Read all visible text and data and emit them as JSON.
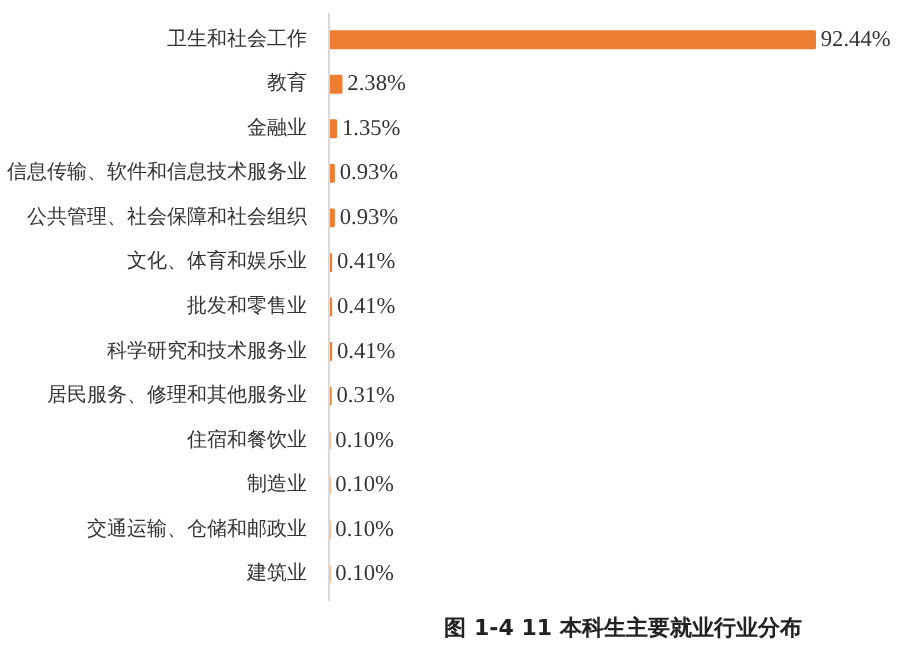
{
  "chart_data": {
    "type": "bar",
    "orientation": "horizontal",
    "title": "图 1-4 11 本科生主要就业行业分布",
    "categories": [
      "卫生和社会工作",
      "教育",
      "金融业",
      "信息传输、软件和信息技术服务业",
      "公共管理、社会保障和社会组织",
      "文化、体育和娱乐业",
      "批发和零售业",
      "科学研究和技术服务业",
      "居民服务、修理和其他服务业",
      "住宿和餐饮业",
      "制造业",
      "交通运输、仓储和邮政业",
      "建筑业"
    ],
    "values": [
      92.44,
      2.38,
      1.35,
      0.93,
      0.93,
      0.41,
      0.41,
      0.41,
      0.31,
      0.1,
      0.1,
      0.1,
      0.1
    ],
    "value_labels": [
      "92.44%",
      "2.38%",
      "1.35%",
      "0.93%",
      "0.93%",
      "0.41%",
      "0.41%",
      "0.41%",
      "0.31%",
      "0.10%",
      "0.10%",
      "0.10%",
      "0.10%"
    ],
    "color": "#ed7d31",
    "tick_labels": "y",
    "grid": false
  }
}
